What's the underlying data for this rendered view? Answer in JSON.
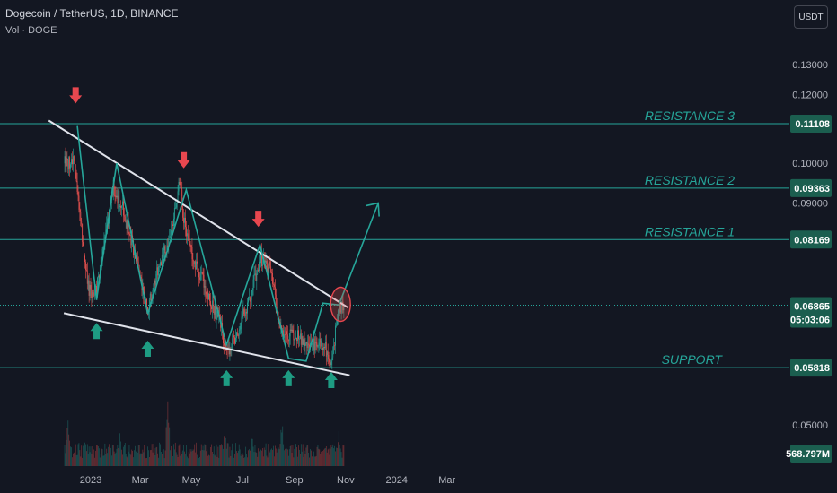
{
  "header": {
    "symbol_line": "Dogecoin / TetherUS, 1D, BINANCE",
    "volume_line": "Vol · DOGE",
    "currency_button": "USDT"
  },
  "colors": {
    "background": "#131722",
    "up": "#26a69a",
    "down": "#ef5350",
    "level_line": "#26a69a",
    "trendline": "#e0e3eb",
    "label_bg": "#1b5e4f",
    "arrow_up": "#1e9c83",
    "arrow_down": "#e8474f"
  },
  "chart_data": {
    "type": "candlestick",
    "y_scale": "log",
    "y_axis_ticks": [
      {
        "value": 0.13,
        "label": "0.13000"
      },
      {
        "value": 0.12,
        "label": "0.12000"
      },
      {
        "value": 0.1,
        "label": "0.10000"
      },
      {
        "value": 0.09,
        "label": "0.09000"
      },
      {
        "value": 0.05,
        "label": "0.05000"
      }
    ],
    "x_axis_ticks": [
      {
        "date": "2023-01-01",
        "label": "2023"
      },
      {
        "date": "2023-03-01",
        "label": "Mar"
      },
      {
        "date": "2023-05-01",
        "label": "May"
      },
      {
        "date": "2023-07-01",
        "label": "Jul"
      },
      {
        "date": "2023-09-01",
        "label": "Sep"
      },
      {
        "date": "2023-11-01",
        "label": "Nov"
      },
      {
        "date": "2024-01-01",
        "label": "2024"
      },
      {
        "date": "2024-03-01",
        "label": "Mar"
      }
    ],
    "price_levels": [
      {
        "name": "RESISTANCE 3",
        "value": 0.11108,
        "label": "0.11108"
      },
      {
        "name": "RESISTANCE 2",
        "value": 0.09363,
        "label": "0.09363"
      },
      {
        "name": "RESISTANCE 1",
        "value": 0.08169,
        "label": "0.08169"
      },
      {
        "name": "SUPPORT",
        "value": 0.05818,
        "label": "0.05818"
      }
    ],
    "last_price": {
      "value": 0.06865,
      "label": "0.06865",
      "countdown": "05:03:06"
    },
    "last_volume": {
      "label": "568.797M"
    },
    "close_path": [
      [
        "2022-12-01",
        0.1
      ],
      [
        "2022-12-12",
        0.1
      ],
      [
        "2022-12-30",
        0.071
      ],
      [
        "2023-01-08",
        0.072
      ],
      [
        "2023-01-28",
        0.094
      ],
      [
        "2023-02-10",
        0.088
      ],
      [
        "2023-02-28",
        0.075
      ],
      [
        "2023-03-10",
        0.068
      ],
      [
        "2023-03-20",
        0.074
      ],
      [
        "2023-04-05",
        0.082
      ],
      [
        "2023-04-17",
        0.095
      ],
      [
        "2023-04-25",
        0.082
      ],
      [
        "2023-05-15",
        0.073
      ],
      [
        "2023-06-05",
        0.065
      ],
      [
        "2023-06-12",
        0.06
      ],
      [
        "2023-06-25",
        0.064
      ],
      [
        "2023-07-10",
        0.07
      ],
      [
        "2023-07-22",
        0.078
      ],
      [
        "2023-08-05",
        0.075
      ],
      [
        "2023-08-17",
        0.063
      ],
      [
        "2023-08-29",
        0.064
      ],
      [
        "2023-09-15",
        0.062
      ],
      [
        "2023-10-05",
        0.062
      ],
      [
        "2023-10-15",
        0.059
      ],
      [
        "2023-10-24",
        0.068
      ],
      [
        "2023-10-30",
        0.0686
      ]
    ],
    "volume_spikes": [
      [
        "2022-12-05",
        0.55
      ],
      [
        "2023-02-05",
        0.38
      ],
      [
        "2023-04-03",
        0.95
      ],
      [
        "2023-06-10",
        0.42
      ],
      [
        "2023-07-12",
        0.4
      ],
      [
        "2023-08-17",
        0.55
      ],
      [
        "2023-10-24",
        0.42
      ]
    ],
    "drawings": {
      "resistance_trendline": [
        [
          "2022-11-12",
          0.112
        ],
        [
          "2023-11-04",
          0.0682
        ]
      ],
      "support_trendline": [
        [
          "2022-11-30",
          0.0672
        ],
        [
          "2023-11-06",
          0.057
        ]
      ],
      "zigzag": [
        [
          "2022-12-16",
          0.1104
        ],
        [
          "2023-01-08",
          0.0696
        ],
        [
          "2023-02-01",
          0.1
        ],
        [
          "2023-03-10",
          0.0671
        ],
        [
          "2023-04-25",
          0.0932
        ],
        [
          "2023-06-12",
          0.0618
        ],
        [
          "2023-07-22",
          0.0806
        ],
        [
          "2023-08-25",
          0.0596
        ],
        [
          "2023-09-15",
          0.0592
        ],
        [
          "2023-10-05",
          0.069
        ],
        [
          "2023-10-24",
          0.0687
        ]
      ],
      "projection_arrow": [
        [
          "2023-10-24",
          0.0687
        ],
        [
          "2023-12-10",
          0.09
        ]
      ],
      "highlight_ellipse": {
        "date": "2023-10-26",
        "value": 0.0688
      },
      "up_arrows": [
        {
          "date": "2023-01-08",
          "value": 0.0655
        },
        {
          "date": "2023-03-10",
          "value": 0.0625
        },
        {
          "date": "2023-06-12",
          "value": 0.0578
        },
        {
          "date": "2023-08-25",
          "value": 0.0578
        },
        {
          "date": "2023-10-15",
          "value": 0.0575
        }
      ],
      "down_arrows": [
        {
          "date": "2022-12-14",
          "value": 0.1172
        },
        {
          "date": "2023-04-22",
          "value": 0.0987
        },
        {
          "date": "2023-07-20",
          "value": 0.0845
        }
      ]
    }
  }
}
